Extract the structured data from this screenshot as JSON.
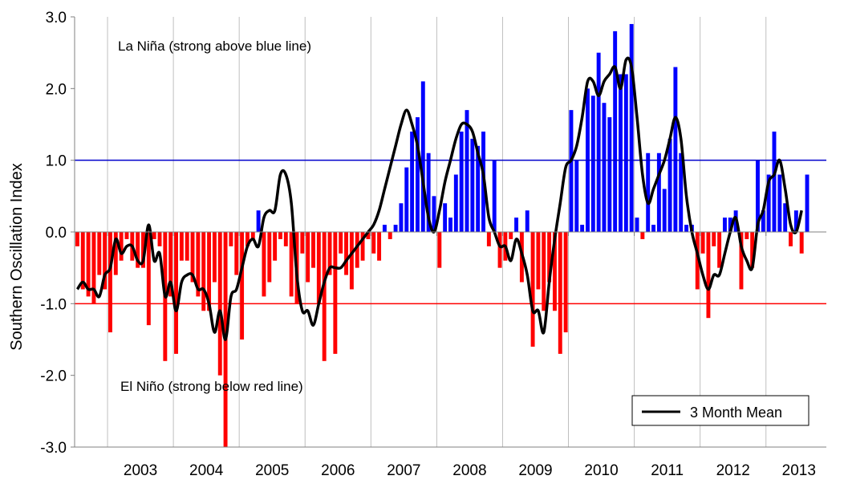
{
  "chart_data": {
    "type": "bar",
    "ylabel": "Southern Oscillation Index",
    "ylim": [
      -3.0,
      3.0
    ],
    "yticks": [
      "3.0",
      "2.0",
      "1.0",
      "0.0",
      "-1.0",
      "-2.0",
      "-3.0"
    ],
    "ytick_values": [
      3,
      2,
      1,
      0,
      -1,
      -2,
      -3
    ],
    "xlim": [
      2002.5,
      2013.917
    ],
    "xtick_years": [
      "2003",
      "2004",
      "2005",
      "2006",
      "2007",
      "2008",
      "2009",
      "2010",
      "2011",
      "2012",
      "2013"
    ],
    "grid": "vertical",
    "colors": {
      "positive": "#0000ff",
      "negative": "#ff0000",
      "mean_line": "#000000",
      "la_nina_line": "#0000cc",
      "el_nino_line": "#ff0000",
      "grid": "#bfbfbf"
    },
    "thresholds": [
      {
        "name": "La Niña",
        "value": 1.0,
        "color": "#0000cc"
      },
      {
        "name": "El Niño",
        "value": -1.0,
        "color": "#ff0000"
      }
    ],
    "annotations": {
      "la_nina": "La Niña (strong above blue line)",
      "el_nino": "El Niño (strong below red line)"
    },
    "legend": {
      "position": "bottom-right",
      "entries": [
        "3 Month Mean"
      ]
    },
    "start_month": "2002-07",
    "series": [
      {
        "kind": "bar",
        "values": [
          -0.2,
          -0.8,
          -0.9,
          -1.0,
          -0.6,
          -0.8,
          -1.4,
          -0.6,
          -0.4,
          -0.1,
          -0.4,
          -0.5,
          -0.5,
          -1.3,
          -0.1,
          -0.2,
          -1.8,
          -0.9,
          -1.7,
          -0.4,
          -0.4,
          -0.7,
          -0.9,
          -1.1,
          -1.1,
          -0.7,
          -2.0,
          -3.0,
          -0.2,
          -0.6,
          -1.5,
          -0.2,
          -0.1,
          0.3,
          -0.9,
          -0.7,
          -0.4,
          -0.1,
          -0.2,
          -0.9,
          -1.0,
          -0.3,
          -0.7,
          -0.5,
          -1.0,
          -1.8,
          -0.6,
          -1.7,
          -0.3,
          -0.6,
          -0.8,
          -0.5,
          -0.4,
          -0.1,
          -0.3,
          -0.4,
          0.1,
          -0.1,
          0.1,
          0.4,
          0.9,
          1.4,
          1.6,
          2.1,
          1.1,
          0.5,
          -0.5,
          0.4,
          0.2,
          0.8,
          1.4,
          1.7,
          1.3,
          1.2,
          1.4,
          -0.2,
          1.0,
          -0.5,
          -0.4,
          -0.1,
          0.2,
          -0.7,
          0.3,
          -1.6,
          -0.8,
          -1.1,
          -0.7,
          -1.1,
          -1.7,
          -1.4,
          1.7,
          1.0,
          0.1,
          2.0,
          1.9,
          2.5,
          1.8,
          1.6,
          2.8,
          2.2,
          2.2,
          2.9,
          0.2,
          -0.1,
          1.1,
          0.1,
          1.1,
          0.6,
          1.3,
          2.3,
          1.1,
          0.1,
          0.1,
          -0.8,
          -0.3,
          -1.2,
          -0.2,
          -0.5,
          0.2,
          0.2,
          0.3,
          -0.8,
          -0.1,
          -0.5,
          1.0,
          0.3,
          0.8,
          1.4,
          0.8,
          0.4,
          -0.2,
          0.3,
          -0.3,
          0.8
        ]
      },
      {
        "kind": "line",
        "name": "3 Month Mean",
        "values": [
          -0.8,
          -0.7,
          -0.8,
          -0.8,
          -0.9,
          -0.6,
          -0.5,
          -0.1,
          -0.3,
          -0.2,
          -0.2,
          -0.4,
          -0.4,
          0.1,
          -0.4,
          -0.3,
          -0.9,
          -0.7,
          -1.1,
          -0.7,
          -0.6,
          -0.6,
          -0.8,
          -0.8,
          -1.0,
          -1.4,
          -1.1,
          -1.5,
          -0.9,
          -0.8,
          -0.5,
          -0.2,
          -0.1,
          -0.2,
          0.2,
          0.3,
          0.3,
          0.8,
          0.8,
          0.4,
          -0.6,
          -1.1,
          -1.1,
          -1.3,
          -1.0,
          -0.7,
          -0.5,
          -0.5,
          -0.5,
          -0.4,
          -0.3,
          -0.2,
          -0.1,
          0.0,
          0.1,
          0.3,
          0.6,
          0.9,
          1.2,
          1.5,
          1.7,
          1.5,
          1.2,
          0.7,
          0.2,
          0.0,
          0.3,
          0.7,
          1.0,
          1.3,
          1.5,
          1.5,
          1.4,
          1.1,
          0.8,
          0.2,
          0.0,
          -0.2,
          -0.2,
          -0.4,
          -0.1,
          -0.3,
          -0.6,
          -1.1,
          -1.1,
          -1.4,
          -0.7,
          -0.1,
          0.4,
          0.9,
          1.0,
          1.2,
          1.6,
          2.1,
          2.1,
          1.9,
          2.1,
          2.2,
          2.3,
          2.0,
          2.4,
          2.3,
          1.6,
          0.8,
          0.4,
          0.6,
          0.8,
          1.0,
          1.3,
          1.6,
          1.3,
          0.5,
          0.0,
          -0.3,
          -0.6,
          -0.8,
          -0.6,
          -0.6,
          -0.3,
          0.0,
          0.2,
          -0.2,
          -0.4,
          -0.5,
          0.1,
          0.3,
          0.7,
          0.8,
          1.0,
          0.6,
          0.1,
          0.0,
          0.3
        ]
      }
    ]
  }
}
